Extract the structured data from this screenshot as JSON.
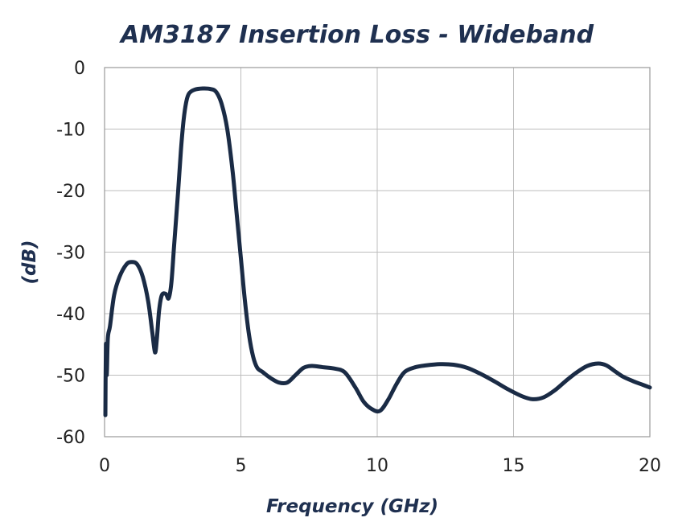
{
  "chart_data": {
    "type": "line",
    "title": "AM3187 Insertion Loss - Wideband",
    "xlabel": "Frequency (GHz)",
    "ylabel": "(dB)",
    "xlim": [
      0,
      20
    ],
    "ylim": [
      -60,
      0
    ],
    "xticks": [
      "0",
      "5",
      "10",
      "15",
      "20"
    ],
    "yticks": [
      "0",
      "-10",
      "-20",
      "-30",
      "-40",
      "-50",
      "-60"
    ],
    "grid": true,
    "legend": "none",
    "series": [
      {
        "color": "#1a2b45",
        "x": [
          0.03,
          0.05,
          0.08,
          0.12,
          0.2,
          0.35,
          0.55,
          0.8,
          1.0,
          1.2,
          1.4,
          1.6,
          1.75,
          1.85,
          1.92,
          2.0,
          2.1,
          2.25,
          2.35,
          2.45,
          2.55,
          2.7,
          2.8,
          2.9,
          3.0,
          3.1,
          3.3,
          3.6,
          3.9,
          4.1,
          4.3,
          4.5,
          4.7,
          4.85,
          5.0,
          5.15,
          5.3,
          5.45,
          5.6,
          5.8,
          6.1,
          6.4,
          6.7,
          7.0,
          7.3,
          7.6,
          8.0,
          8.4,
          8.8,
          9.2,
          9.5,
          9.8,
          10.1,
          10.4,
          10.7,
          11.0,
          11.4,
          11.8,
          12.3,
          12.8,
          13.3,
          13.8,
          14.3,
          14.8,
          15.3,
          15.7,
          16.1,
          16.5,
          16.9,
          17.3,
          17.7,
          18.1,
          18.4,
          18.7,
          19.0,
          19.4,
          19.7,
          20.0
        ],
        "y": [
          -56.5,
          -45.0,
          -50.0,
          -44.0,
          -42.0,
          -37.0,
          -34.0,
          -32.0,
          -31.6,
          -32.0,
          -34.0,
          -38.0,
          -43.0,
          -46.3,
          -44.0,
          -39.5,
          -37.0,
          -36.8,
          -37.5,
          -35.0,
          -29.0,
          -20.0,
          -13.5,
          -8.5,
          -5.5,
          -4.2,
          -3.6,
          -3.4,
          -3.5,
          -4.0,
          -6.0,
          -10.0,
          -17.0,
          -24.0,
          -31.0,
          -38.0,
          -43.5,
          -47.0,
          -48.8,
          -49.5,
          -50.5,
          -51.2,
          -51.2,
          -50.0,
          -48.8,
          -48.5,
          -48.7,
          -48.9,
          -49.5,
          -52.0,
          -54.3,
          -55.5,
          -55.8,
          -54.0,
          -51.5,
          -49.5,
          -48.7,
          -48.4,
          -48.2,
          -48.3,
          -48.8,
          -49.8,
          -51.0,
          -52.3,
          -53.4,
          -53.9,
          -53.6,
          -52.5,
          -51.0,
          -49.6,
          -48.5,
          -48.1,
          -48.4,
          -49.3,
          -50.2,
          -51.0,
          -51.5,
          -52.0
        ]
      }
    ]
  }
}
